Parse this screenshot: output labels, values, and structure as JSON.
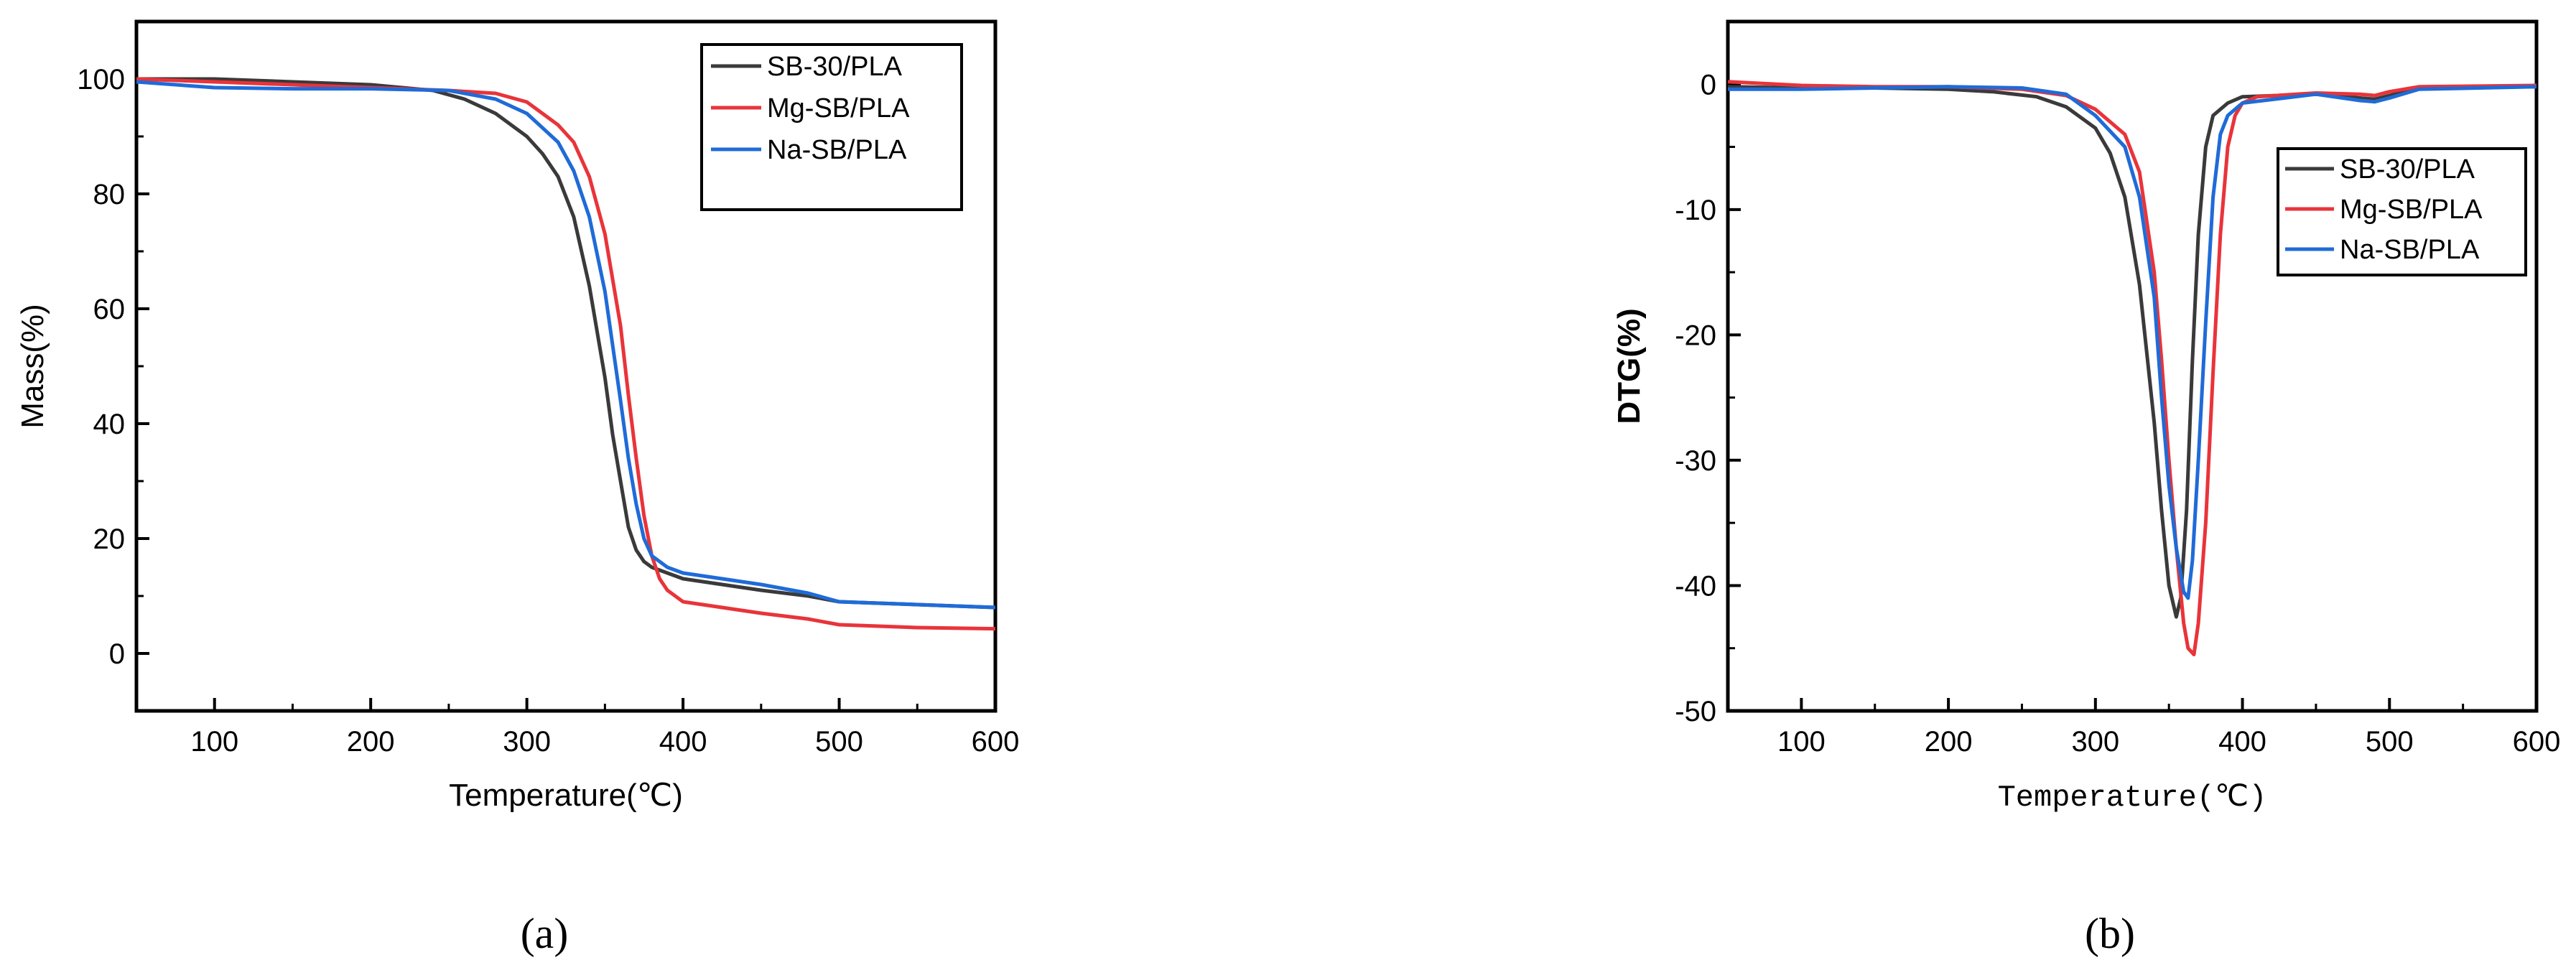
{
  "colors": {
    "SB-30/PLA": "#3a3a3a",
    "Mg-SB/PLA": "#e8343a",
    "Na-SB/PLA": "#1f6bd8"
  },
  "chart_data": [
    {
      "id": "a",
      "type": "line",
      "panel_label": "(a)",
      "xlabel": "Temperature(℃)",
      "ylabel": "Mass(%)",
      "xlim": [
        50,
        600
      ],
      "ylim": [
        -10,
        110
      ],
      "xticks": [
        100,
        200,
        300,
        400,
        500,
        600
      ],
      "yticks": [
        0,
        20,
        40,
        60,
        80,
        100
      ],
      "legend": "top-right",
      "grid": false,
      "series": [
        {
          "name": "SB-30/PLA",
          "x": [
            50,
            100,
            150,
            200,
            240,
            260,
            280,
            300,
            310,
            320,
            330,
            340,
            350,
            355,
            360,
            365,
            370,
            375,
            380,
            390,
            400,
            450,
            480,
            500,
            550,
            600
          ],
          "y": [
            100,
            100,
            99.5,
            99,
            98,
            96.5,
            94,
            90,
            87,
            83,
            76,
            64,
            48,
            38,
            30,
            22,
            18,
            16,
            15,
            14,
            13,
            11,
            10,
            9,
            8.5,
            8
          ]
        },
        {
          "name": "Mg-SB/PLA",
          "x": [
            50,
            100,
            150,
            200,
            250,
            280,
            300,
            320,
            330,
            340,
            350,
            360,
            365,
            370,
            375,
            380,
            385,
            390,
            395,
            400,
            450,
            480,
            500,
            550,
            600
          ],
          "y": [
            100,
            99.5,
            99,
            98.5,
            98,
            97.5,
            96,
            92,
            89,
            83,
            73,
            57,
            45,
            34,
            24,
            17,
            13,
            11,
            10,
            9,
            7,
            6,
            5,
            4.5,
            4.3
          ]
        },
        {
          "name": "Na-SB/PLA",
          "x": [
            50,
            100,
            150,
            200,
            250,
            280,
            300,
            320,
            330,
            340,
            350,
            360,
            365,
            370,
            375,
            380,
            390,
            400,
            450,
            480,
            500,
            550,
            600
          ],
          "y": [
            99.5,
            98.5,
            98.3,
            98.3,
            98,
            96.5,
            94,
            89,
            84,
            76,
            63,
            44,
            34,
            26,
            20,
            17,
            15,
            14,
            12,
            10.5,
            9,
            8.5,
            8
          ]
        }
      ]
    },
    {
      "id": "b",
      "type": "line",
      "panel_label": "(b)",
      "xlabel": "Temperature(℃)",
      "ylabel": "DTG(%)",
      "xlim": [
        50,
        600
      ],
      "ylim": [
        -50,
        5
      ],
      "xticks": [
        100,
        200,
        300,
        400,
        500,
        600
      ],
      "yticks": [
        0,
        -10,
        -20,
        -30,
        -40,
        -50
      ],
      "legend": "upper-right",
      "grid": false,
      "series": [
        {
          "name": "SB-30/PLA",
          "x": [
            50,
            100,
            150,
            200,
            230,
            260,
            280,
            300,
            310,
            320,
            330,
            340,
            345,
            350,
            355,
            358,
            362,
            366,
            370,
            375,
            380,
            390,
            400,
            450,
            480,
            490,
            500,
            520,
            600
          ],
          "y": [
            -0.2,
            -0.3,
            -0.3,
            -0.4,
            -0.6,
            -1.0,
            -1.8,
            -3.5,
            -5.5,
            -9,
            -16,
            -27,
            -34,
            -40,
            -42.5,
            -41,
            -34,
            -22,
            -12,
            -5,
            -2.5,
            -1.5,
            -1,
            -0.8,
            -1.1,
            -1.2,
            -0.9,
            -0.3,
            -0.2
          ]
        },
        {
          "name": "Mg-SB/PLA",
          "x": [
            50,
            100,
            150,
            200,
            250,
            280,
            300,
            320,
            330,
            340,
            345,
            350,
            355,
            360,
            363,
            367,
            370,
            375,
            380,
            385,
            390,
            395,
            400,
            410,
            450,
            480,
            490,
            500,
            520,
            600
          ],
          "y": [
            0.2,
            -0.1,
            -0.2,
            -0.2,
            -0.4,
            -0.9,
            -2,
            -4,
            -7,
            -15,
            -22,
            -30,
            -37,
            -43,
            -45,
            -45.5,
            -43,
            -35,
            -23,
            -12,
            -5,
            -2.5,
            -1.5,
            -1,
            -0.7,
            -0.8,
            -0.9,
            -0.6,
            -0.2,
            -0.1
          ]
        },
        {
          "name": "Na-SB/PLA",
          "x": [
            50,
            100,
            150,
            200,
            250,
            280,
            300,
            320,
            330,
            340,
            345,
            350,
            355,
            360,
            363,
            366,
            370,
            375,
            380,
            385,
            390,
            400,
            450,
            480,
            490,
            500,
            520,
            600
          ],
          "y": [
            -0.4,
            -0.4,
            -0.3,
            -0.2,
            -0.3,
            -0.8,
            -2.5,
            -5,
            -9,
            -17,
            -25,
            -32,
            -37,
            -40.5,
            -41,
            -38,
            -30,
            -19,
            -9,
            -4,
            -2.5,
            -1.5,
            -0.8,
            -1.3,
            -1.4,
            -1.1,
            -0.4,
            -0.2
          ]
        }
      ]
    }
  ]
}
